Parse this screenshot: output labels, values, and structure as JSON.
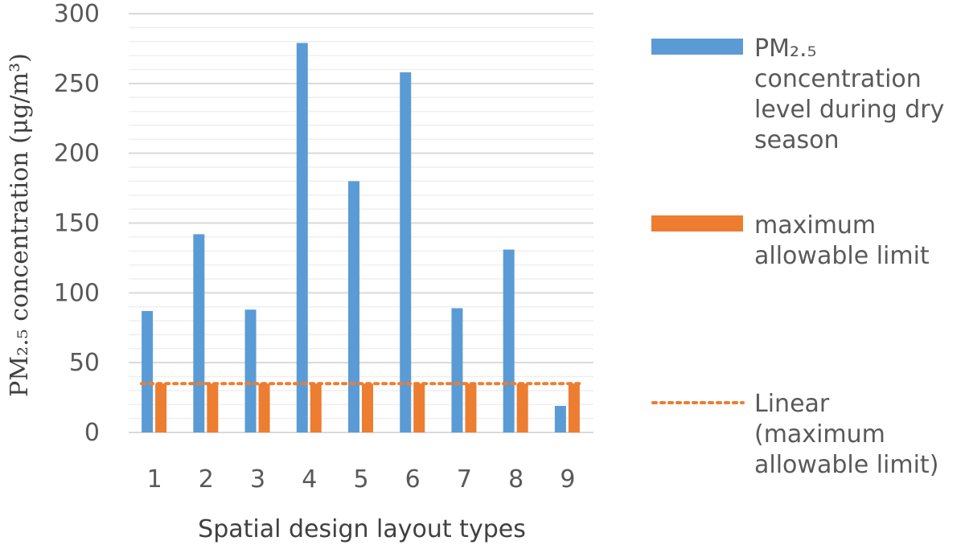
{
  "chart_data": {
    "type": "bar",
    "categories": [
      "1",
      "2",
      "3",
      "4",
      "5",
      "6",
      "7",
      "8",
      "9"
    ],
    "series": [
      {
        "name": "PM₂.₅ concentration level during dry season",
        "values": [
          87,
          142,
          88,
          279,
          180,
          258,
          89,
          131,
          19
        ],
        "color": "#5b9bd5"
      },
      {
        "name": "maximum allowable limit",
        "values": [
          35,
          35,
          35,
          35,
          35,
          35,
          35,
          35,
          35
        ],
        "color": "#ed7d31"
      }
    ],
    "trendline": {
      "name": "Linear (maximum allowable limit)",
      "style": "dotted",
      "color": "#ed7d31",
      "value": 35
    },
    "xlabel": "Spatial design layout types",
    "ylabel": "PM₂.₅ concentration (μg/m³)",
    "ylim": [
      0,
      300
    ],
    "yticks": [
      0,
      50,
      100,
      150,
      200,
      250,
      300
    ],
    "grid": true,
    "legend_position": "right"
  }
}
